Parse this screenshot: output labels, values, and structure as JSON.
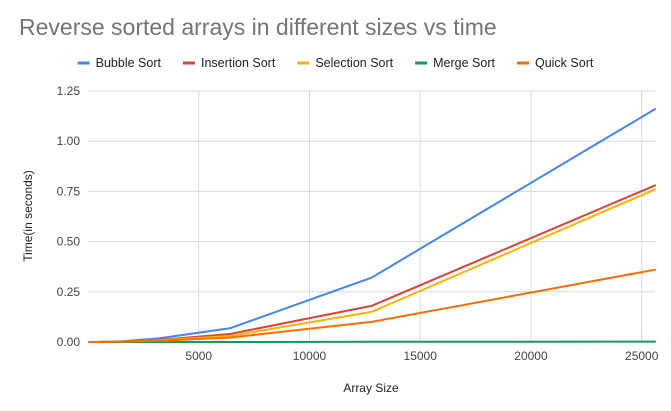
{
  "chart_data": {
    "type": "line",
    "title": "Reverse sorted arrays in different sizes vs time",
    "xlabel": "Array Size",
    "ylabel": "Time(in seconds)",
    "x": [
      100,
      200,
      400,
      800,
      1600,
      3200,
      6400,
      12800,
      25600
    ],
    "xlim": [
      0,
      25600
    ],
    "ylim": [
      0,
      1.25
    ],
    "x_ticks": [
      5000,
      10000,
      15000,
      20000,
      25000
    ],
    "x_tick_labels": [
      "5000",
      "10000",
      "15000",
      "20000",
      "25000"
    ],
    "y_ticks": [
      0,
      0.25,
      0.5,
      0.75,
      1.0,
      1.25
    ],
    "y_tick_labels": [
      "0.00",
      "0.25",
      "0.50",
      "0.75",
      "1.00",
      "1.25"
    ],
    "grid": true,
    "legend_position": "top",
    "series": [
      {
        "name": "Bubble Sort",
        "color": "#4285f4",
        "values": [
          0,
          0,
          0,
          0.001,
          0.004,
          0.018,
          0.068,
          0.32,
          1.16
        ]
      },
      {
        "name": "Insertion Sort",
        "color": "#db4437",
        "values": [
          0,
          0,
          0,
          0.001,
          0.003,
          0.01,
          0.04,
          0.18,
          0.78
        ]
      },
      {
        "name": "Selection Sort",
        "color": "#f4b400",
        "values": [
          0,
          0,
          0,
          0.001,
          0.002,
          0.008,
          0.03,
          0.15,
          0.76
        ]
      },
      {
        "name": "Merge Sort",
        "color": "#0f9d58",
        "values": [
          0,
          0,
          0,
          0,
          0,
          0,
          0,
          0.001,
          0.002
        ]
      },
      {
        "name": "Quick Sort",
        "color": "#ff6d01",
        "values": [
          0,
          0,
          0,
          0.001,
          0.002,
          0.006,
          0.022,
          0.1,
          0.36
        ]
      }
    ]
  }
}
